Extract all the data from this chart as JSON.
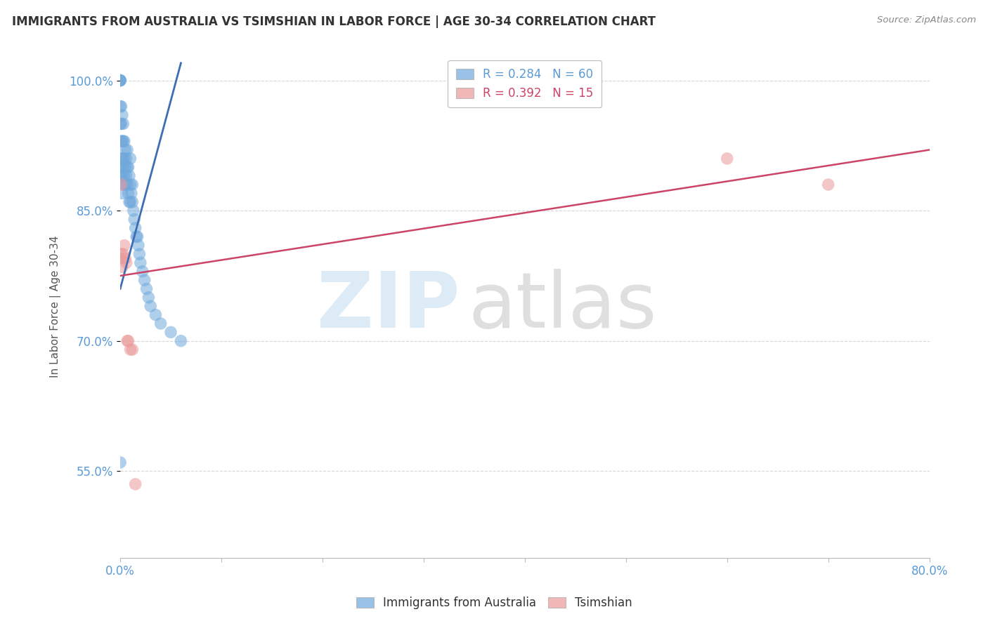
{
  "title": "IMMIGRANTS FROM AUSTRALIA VS TSIMSHIAN IN LABOR FORCE | AGE 30-34 CORRELATION CHART",
  "source": "Source: ZipAtlas.com",
  "ylabel": "In Labor Force | Age 30-34",
  "xlim": [
    0.0,
    0.8
  ],
  "ylim": [
    0.45,
    1.03
  ],
  "yticks": [
    0.55,
    0.7,
    0.85,
    1.0
  ],
  "ytick_labels": [
    "55.0%",
    "70.0%",
    "85.0%",
    "100.0%"
  ],
  "xticks": [
    0.0,
    0.1,
    0.2,
    0.3,
    0.4,
    0.5,
    0.6,
    0.7,
    0.8
  ],
  "xtick_labels": [
    "0.0%",
    "",
    "",
    "",
    "",
    "",
    "",
    "",
    "80.0%"
  ],
  "australia_R": 0.284,
  "australia_N": 60,
  "tsimshian_R": 0.392,
  "tsimshian_N": 15,
  "australia_color": "#6fa8dc",
  "tsimshian_color": "#ea9999",
  "australia_line_color": "#3d6db5",
  "tsimshian_line_color": "#cc4466",
  "australia_x": [
    0.0,
    0.0,
    0.0,
    0.0,
    0.0,
    0.0,
    0.0,
    0.001,
    0.001,
    0.001,
    0.001,
    0.001,
    0.002,
    0.002,
    0.002,
    0.002,
    0.002,
    0.003,
    0.003,
    0.003,
    0.003,
    0.004,
    0.004,
    0.004,
    0.005,
    0.005,
    0.005,
    0.006,
    0.006,
    0.007,
    0.007,
    0.007,
    0.008,
    0.008,
    0.009,
    0.009,
    0.01,
    0.01,
    0.01,
    0.011,
    0.012,
    0.012,
    0.013,
    0.014,
    0.015,
    0.016,
    0.017,
    0.018,
    0.019,
    0.02,
    0.022,
    0.024,
    0.026,
    0.028,
    0.03,
    0.035,
    0.04,
    0.05,
    0.06,
    0.0
  ],
  "australia_y": [
    1.0,
    1.0,
    1.0,
    1.0,
    0.97,
    0.95,
    0.9,
    0.97,
    0.95,
    0.93,
    0.91,
    0.89,
    0.96,
    0.93,
    0.91,
    0.89,
    0.87,
    0.95,
    0.93,
    0.9,
    0.88,
    0.93,
    0.91,
    0.89,
    0.92,
    0.9,
    0.88,
    0.91,
    0.89,
    0.92,
    0.9,
    0.88,
    0.9,
    0.87,
    0.89,
    0.86,
    0.91,
    0.88,
    0.86,
    0.87,
    0.88,
    0.86,
    0.85,
    0.84,
    0.83,
    0.82,
    0.82,
    0.81,
    0.8,
    0.79,
    0.78,
    0.77,
    0.76,
    0.75,
    0.74,
    0.73,
    0.72,
    0.71,
    0.7,
    0.56
  ],
  "tsimshian_x": [
    0.0,
    0.001,
    0.001,
    0.002,
    0.003,
    0.004,
    0.005,
    0.006,
    0.007,
    0.008,
    0.01,
    0.012,
    0.015,
    0.6,
    0.7
  ],
  "tsimshian_y": [
    0.795,
    0.88,
    0.8,
    0.785,
    0.8,
    0.81,
    0.795,
    0.79,
    0.7,
    0.7,
    0.69,
    0.69,
    0.535,
    0.91,
    0.88
  ],
  "aus_line_x0": 0.0,
  "aus_line_x1": 0.06,
  "aus_line_y0": 0.76,
  "aus_line_y1": 1.02,
  "ts_line_x0": 0.0,
  "ts_line_x1": 0.8,
  "ts_line_y0": 0.775,
  "ts_line_y1": 0.92
}
